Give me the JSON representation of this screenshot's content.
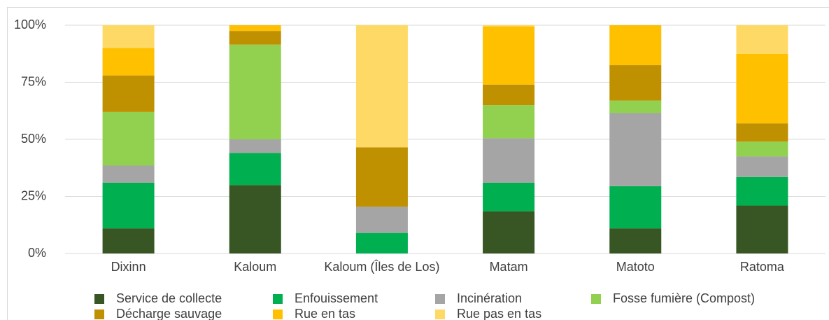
{
  "chart_data": {
    "type": "stacked_bar",
    "categories": [
      "Dixinn",
      "Kaloum",
      "Kaloum (Îles de Los)",
      "Matam",
      "Matoto",
      "Ratoma"
    ],
    "series": [
      {
        "name": "Service de collecte",
        "color": "#375623",
        "values": [
          11,
          30,
          0,
          18.5,
          11,
          21
        ]
      },
      {
        "name": "Enfouissement",
        "color": "#00b050",
        "values": [
          20,
          14,
          9,
          12.5,
          18.5,
          12.5
        ]
      },
      {
        "name": "Incinération",
        "color": "#a5a5a5",
        "values": [
          7.5,
          6,
          11.5,
          19.5,
          32,
          9
        ]
      },
      {
        "name": "Fosse fumière (Compost)",
        "color": "#92d050",
        "values": [
          23.5,
          41.5,
          0,
          14.5,
          5.5,
          6.5
        ]
      },
      {
        "name": "Décharge sauvage",
        "color": "#bf9000",
        "values": [
          16,
          6,
          26,
          9,
          15.5,
          8
        ]
      },
      {
        "name": "Rue en tas",
        "color": "#ffc000",
        "values": [
          12,
          2.5,
          0,
          25.5,
          17.5,
          30.5
        ]
      },
      {
        "name": "Rue pas en tas",
        "color": "#ffd966",
        "values": [
          10,
          0,
          53.5,
          0.5,
          0,
          12.5
        ]
      }
    ],
    "ylim": [
      0,
      100
    ],
    "yticks": [
      {
        "value": 0,
        "label": "0%"
      },
      {
        "value": 25,
        "label": "25%"
      },
      {
        "value": 50,
        "label": "50%"
      },
      {
        "value": 75,
        "label": "75%"
      },
      {
        "value": 100,
        "label": "100%"
      }
    ],
    "grid": true,
    "legend": "bottom"
  }
}
